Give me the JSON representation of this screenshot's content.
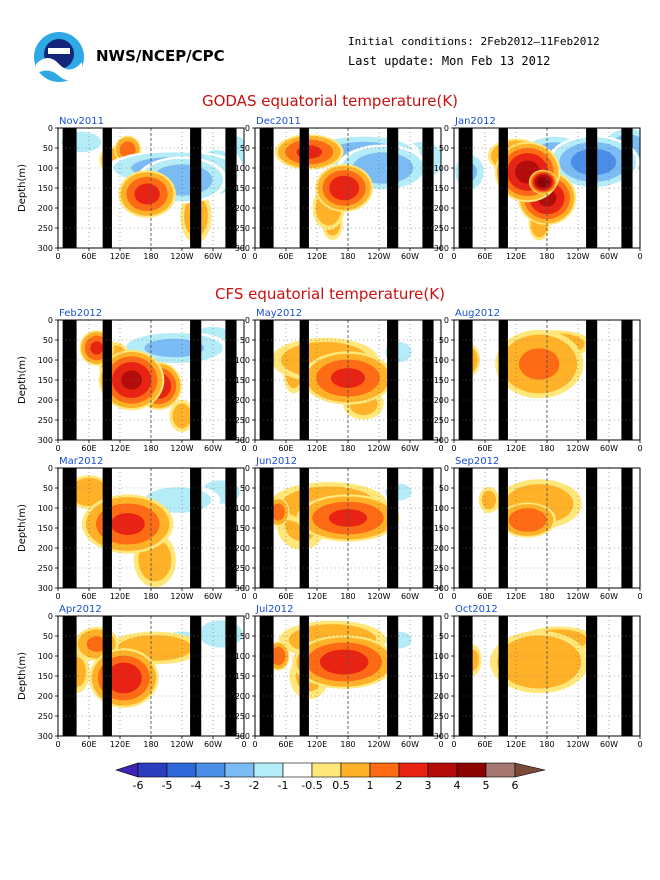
{
  "header": {
    "agency": "NWS/NCEP/CPC",
    "initial_conditions": "Initial conditions: 2Feb2012–11Feb2012",
    "last_update": "Last update: Mon Feb 13 2012"
  },
  "sections": {
    "godas_title": "GODAS equatorial temperature(K)",
    "cfs_title": "CFS equatorial temperature(K)"
  },
  "axes": {
    "ylabel": "Depth(m)",
    "x_ticks": [
      "0",
      "60E",
      "120E",
      "180",
      "120W",
      "60W",
      "0"
    ],
    "y_ticks": [
      "0",
      "50",
      "100",
      "150",
      "200",
      "250",
      "300"
    ]
  },
  "colorbar": {
    "labels": [
      "-6",
      "-5",
      "-4",
      "-3",
      "-2",
      "-1",
      "-0.5",
      "0.5",
      "1",
      "2",
      "3",
      "4",
      "5",
      "6"
    ],
    "colors": [
      "#3c23b4",
      "#2a3ebd",
      "#2f69d8",
      "#4a8ee8",
      "#7bbcf4",
      "#b4ecf8",
      "#ffffff",
      "#ffe77a",
      "#ffb228",
      "#ff6a14",
      "#e82313",
      "#b40b0b",
      "#8c0303",
      "#a47870",
      "#7a4a38"
    ]
  },
  "chart_data": [
    {
      "type": "heatmap",
      "panel": "Nov2011",
      "title": "Nov2011",
      "blobs": [
        [
          90,
          55,
          12,
          25,
          2.4
        ],
        [
          115,
          165,
          25,
          40,
          3.2
        ],
        [
          160,
          130,
          40,
          40,
          -2.8
        ],
        [
          150,
          100,
          60,
          30,
          -2.6
        ],
        [
          70,
          80,
          12,
          25,
          1.6
        ],
        [
          178,
          220,
          15,
          50,
          1.3
        ],
        [
          30,
          35,
          25,
          25,
          -1.3
        ],
        [
          205,
          110,
          25,
          50,
          -1.5
        ],
        [
          230,
          60,
          15,
          40,
          -1.2
        ]
      ],
      "land": [
        [
          5,
          20
        ],
        [
          48,
          58
        ],
        [
          142,
          154
        ],
        [
          180,
          192
        ]
      ],
      "ylim": [
        300,
        0
      ]
    },
    {
      "type": "heatmap",
      "panel": "Dec2011",
      "title": "Dec2011",
      "blobs": [
        [
          70,
          60,
          30,
          30,
          3.0
        ],
        [
          115,
          150,
          25,
          40,
          3.5
        ],
        [
          165,
          100,
          40,
          40,
          -2.8
        ],
        [
          140,
          60,
          50,
          30,
          -2.4
        ],
        [
          95,
          200,
          15,
          40,
          1.5
        ],
        [
          215,
          80,
          25,
          40,
          -1.6
        ],
        [
          100,
          240,
          10,
          30,
          1.2
        ]
      ],
      "land": [
        [
          5,
          20
        ],
        [
          48,
          58
        ],
        [
          142,
          154
        ],
        [
          180,
          192
        ]
      ],
      "ylim": [
        300,
        0
      ]
    },
    {
      "type": "heatmap",
      "panel": "Jan2012",
      "title": "Jan2012",
      "blobs": [
        [
          95,
          110,
          28,
          50,
          4.2
        ],
        [
          120,
          175,
          25,
          45,
          4.0
        ],
        [
          80,
          70,
          25,
          30,
          2.5
        ],
        [
          180,
          85,
          40,
          45,
          -3.4
        ],
        [
          225,
          55,
          25,
          40,
          -2.8
        ],
        [
          130,
          60,
          30,
          30,
          -2.3
        ],
        [
          115,
          135,
          12,
          20,
          5.5
        ],
        [
          20,
          110,
          15,
          35,
          -2.0
        ],
        [
          110,
          240,
          10,
          30,
          1.5
        ]
      ],
      "land": [
        [
          5,
          20
        ],
        [
          48,
          58
        ],
        [
          142,
          154
        ],
        [
          180,
          192
        ]
      ],
      "ylim": [
        300,
        0
      ]
    },
    {
      "type": "heatmap",
      "panel": "Feb2012",
      "title": "Feb2012",
      "blobs": [
        [
          95,
          150,
          28,
          50,
          4.0
        ],
        [
          50,
          70,
          15,
          30,
          3.0
        ],
        [
          130,
          165,
          20,
          40,
          3.6
        ],
        [
          150,
          70,
          50,
          30,
          -2.2
        ],
        [
          200,
          50,
          25,
          30,
          -1.5
        ],
        [
          75,
          120,
          15,
          45,
          2.2
        ],
        [
          15,
          100,
          10,
          40,
          -1.2
        ],
        [
          160,
          240,
          12,
          30,
          1.3
        ]
      ],
      "land": [
        [
          5,
          20
        ],
        [
          48,
          58
        ],
        [
          142,
          154
        ],
        [
          180,
          192
        ]
      ],
      "ylim": [
        300,
        0
      ]
    },
    {
      "type": "heatmap",
      "panel": "May2012",
      "title": "May2012",
      "blobs": [
        [
          120,
          145,
          40,
          45,
          3.0
        ],
        [
          90,
          100,
          50,
          40,
          1.6
        ],
        [
          50,
          130,
          10,
          40,
          1.3
        ],
        [
          185,
          80,
          20,
          30,
          -1.0
        ],
        [
          230,
          40,
          12,
          30,
          -0.9
        ],
        [
          140,
          210,
          20,
          30,
          1.1
        ]
      ],
      "land": [
        [
          5,
          20
        ],
        [
          48,
          58
        ],
        [
          142,
          154
        ],
        [
          180,
          192
        ]
      ],
      "ylim": [
        300,
        0
      ]
    },
    {
      "type": "heatmap",
      "panel": "Aug2012",
      "title": "Aug2012",
      "blobs": [
        [
          110,
          110,
          40,
          60,
          2.0
        ],
        [
          130,
          60,
          35,
          25,
          1.5
        ],
        [
          20,
          100,
          10,
          30,
          1.4
        ],
        [
          230,
          30,
          12,
          20,
          -0.8
        ]
      ],
      "land": [
        [
          5,
          20
        ],
        [
          48,
          58
        ],
        [
          142,
          154
        ],
        [
          180,
          192
        ]
      ],
      "ylim": [
        300,
        0
      ]
    },
    {
      "type": "heatmap",
      "panel": "Mar2012",
      "title": "Mar2012",
      "blobs": [
        [
          90,
          140,
          40,
          50,
          3.0
        ],
        [
          40,
          60,
          20,
          30,
          1.8
        ],
        [
          65,
          140,
          15,
          45,
          2.0
        ],
        [
          155,
          80,
          40,
          30,
          -1.4
        ],
        [
          210,
          60,
          25,
          30,
          -1.2
        ],
        [
          125,
          230,
          20,
          50,
          1.4
        ]
      ],
      "land": [
        [
          5,
          20
        ],
        [
          48,
          58
        ],
        [
          142,
          154
        ],
        [
          180,
          192
        ]
      ],
      "ylim": [
        300,
        0
      ]
    },
    {
      "type": "heatmap",
      "panel": "Jun2012",
      "title": "Jun2012",
      "blobs": [
        [
          120,
          125,
          45,
          40,
          3.0
        ],
        [
          30,
          110,
          10,
          25,
          2.4
        ],
        [
          95,
          90,
          55,
          40,
          1.5
        ],
        [
          185,
          60,
          20,
          25,
          -1.0
        ],
        [
          60,
          140,
          25,
          50,
          1.0
        ]
      ],
      "land": [
        [
          5,
          20
        ],
        [
          48,
          58
        ],
        [
          142,
          154
        ],
        [
          180,
          192
        ]
      ],
      "ylim": [
        300,
        0
      ]
    },
    {
      "type": "heatmap",
      "panel": "Sep2012",
      "title": "Sep2012",
      "blobs": [
        [
          95,
          130,
          25,
          30,
          2.8
        ],
        [
          110,
          90,
          40,
          45,
          1.5
        ],
        [
          45,
          80,
          10,
          25,
          1.1
        ]
      ],
      "land": [
        [
          5,
          20
        ],
        [
          48,
          58
        ],
        [
          142,
          154
        ],
        [
          180,
          192
        ]
      ],
      "ylim": [
        300,
        0
      ]
    },
    {
      "type": "heatmap",
      "panel": "Apr2012",
      "title": "Apr2012",
      "blobs": [
        [
          85,
          155,
          30,
          50,
          3.5
        ],
        [
          50,
          70,
          20,
          30,
          2.0
        ],
        [
          125,
          80,
          45,
          30,
          1.4
        ],
        [
          210,
          45,
          25,
          30,
          -1.6
        ],
        [
          160,
          60,
          25,
          25,
          -1.0
        ],
        [
          25,
          140,
          12,
          40,
          1.1
        ]
      ],
      "land": [
        [
          5,
          20
        ],
        [
          48,
          58
        ],
        [
          142,
          154
        ],
        [
          180,
          192
        ]
      ],
      "ylim": [
        300,
        0
      ]
    },
    {
      "type": "heatmap",
      "panel": "Jul2012",
      "title": "Jul2012",
      "blobs": [
        [
          115,
          115,
          45,
          45,
          3.3
        ],
        [
          30,
          100,
          10,
          25,
          2.6
        ],
        [
          100,
          60,
          50,
          35,
          1.6
        ],
        [
          185,
          60,
          20,
          25,
          -1.0
        ],
        [
          70,
          150,
          20,
          45,
          1.0
        ]
      ],
      "land": [
        [
          5,
          20
        ],
        [
          48,
          58
        ],
        [
          142,
          154
        ],
        [
          180,
          192
        ]
      ],
      "ylim": [
        300,
        0
      ]
    },
    {
      "type": "heatmap",
      "panel": "Oct2012",
      "title": "Oct2012",
      "blobs": [
        [
          110,
          115,
          45,
          55,
          1.9
        ],
        [
          135,
          60,
          35,
          25,
          1.4
        ],
        [
          25,
          110,
          8,
          30,
          1.0
        ]
      ],
      "land": [
        [
          5,
          20
        ],
        [
          48,
          58
        ],
        [
          142,
          154
        ],
        [
          180,
          192
        ]
      ],
      "ylim": [
        300,
        0
      ]
    }
  ]
}
